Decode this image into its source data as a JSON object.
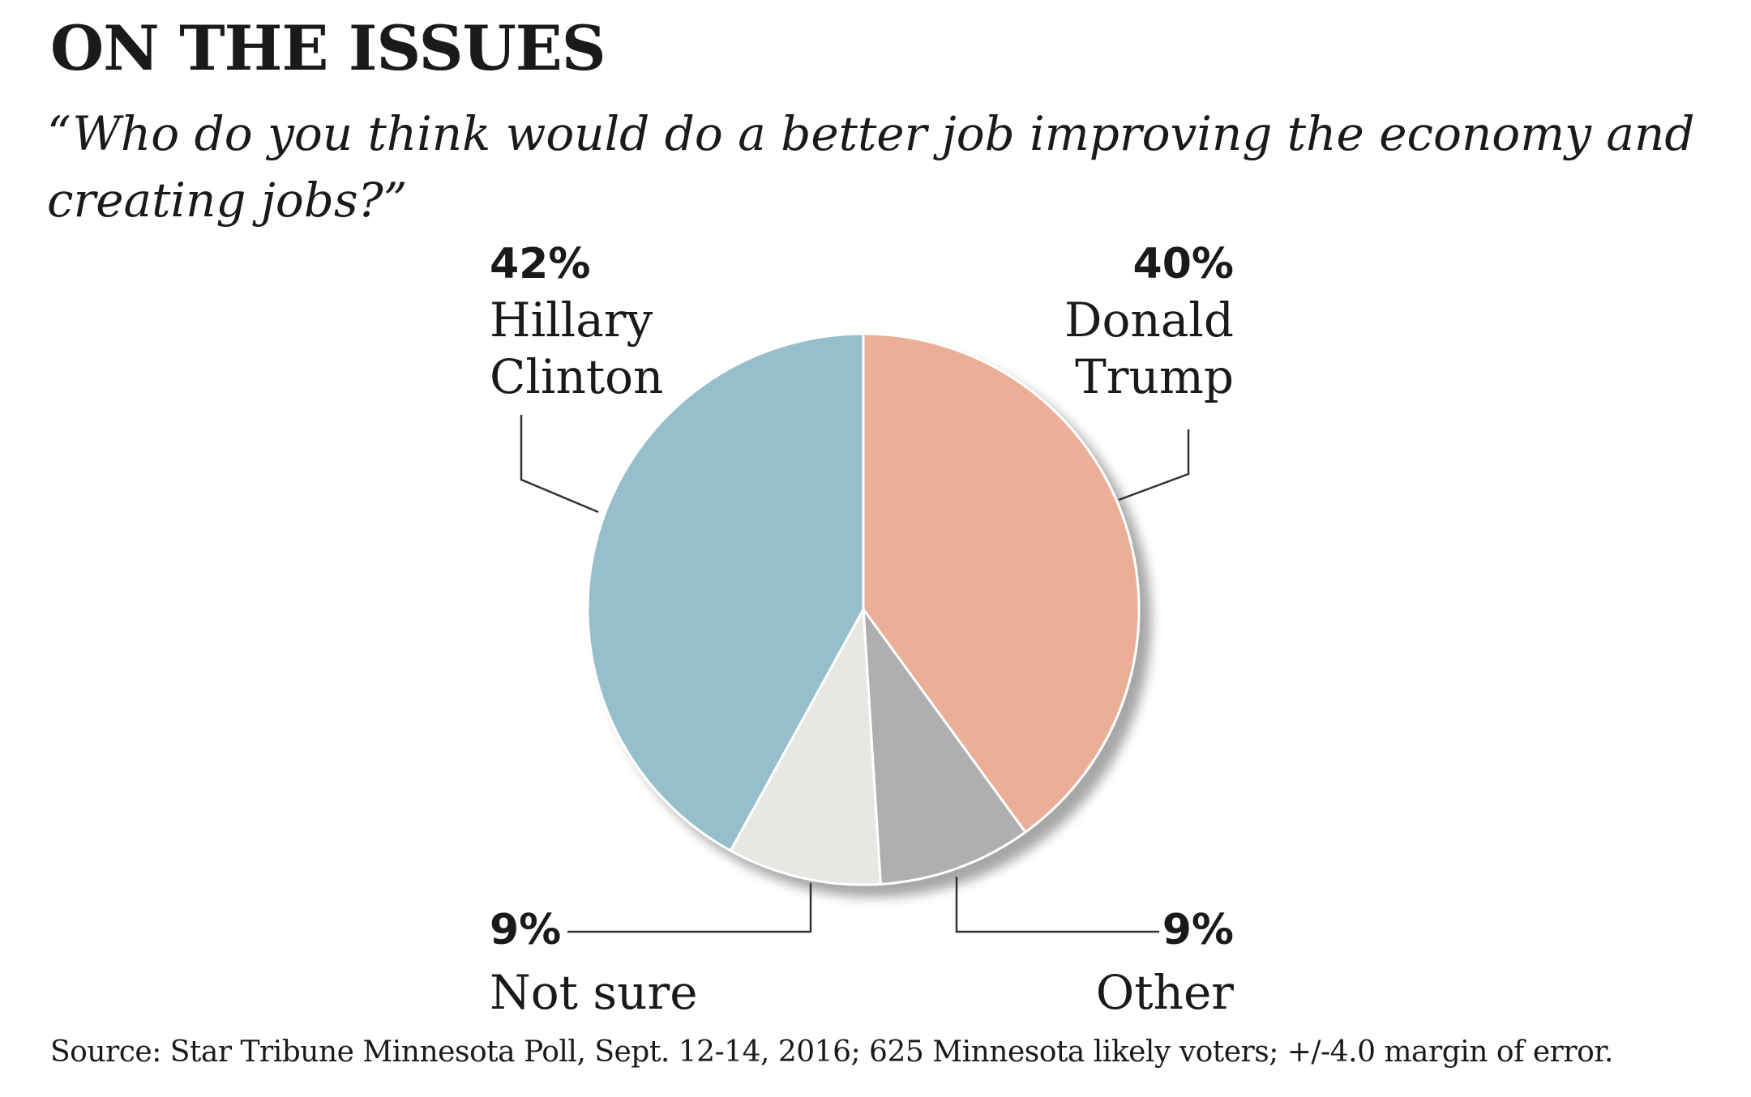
{
  "header": {
    "title": "ON THE ISSUES",
    "question": "“Who do you think would do a better job improving the economy and creating jobs?”"
  },
  "chart_data": {
    "type": "pie",
    "slices": [
      {
        "label": "Donald Trump",
        "pct_label": "40%",
        "value": 40,
        "color": "#ebae96"
      },
      {
        "label": "Other",
        "pct_label": "9%",
        "value": 9,
        "color": "#afafaf"
      },
      {
        "label": "Not sure",
        "pct_label": "9%",
        "value": 9,
        "color": "#e8e7e3"
      },
      {
        "label": "Hillary Clinton",
        "pct_label": "42%",
        "value": 42,
        "color": "#96bfcb"
      }
    ]
  },
  "labels": {
    "clinton": {
      "pct": "42%",
      "line1": "Hillary",
      "line2": "Clinton"
    },
    "trump": {
      "pct": "40%",
      "line1": "Donald",
      "line2": "Trump"
    },
    "not_sure": {
      "pct": "9%",
      "name": "Not sure"
    },
    "other": {
      "pct": "9%",
      "name": "Other"
    }
  },
  "footer": {
    "source": "Source: Star Tribune Minnesota Poll, Sept. 12-14, 2016; 625 Minnesota likely voters; +/-4.0 margin of error."
  }
}
